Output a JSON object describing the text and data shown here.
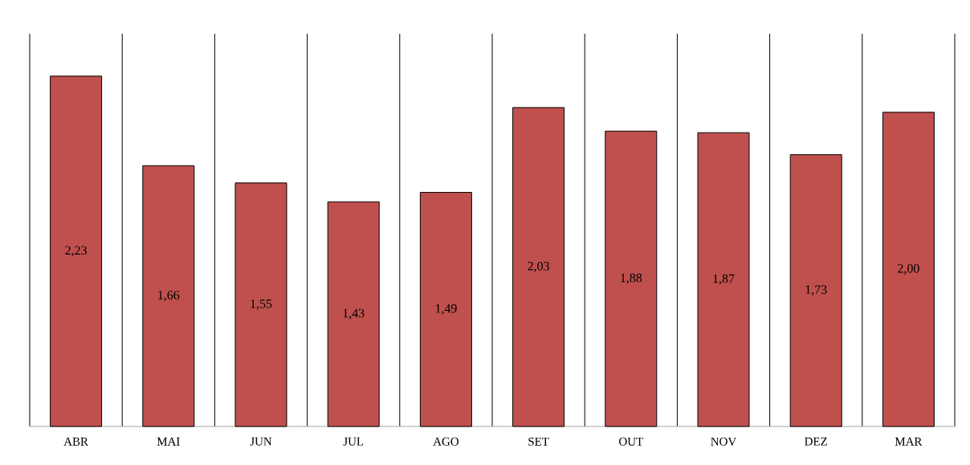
{
  "chart_data": {
    "type": "bar",
    "categories": [
      "ABR",
      "MAI",
      "JUN",
      "JUL",
      "AGO",
      "SET",
      "OUT",
      "NOV",
      "DEZ",
      "MAR"
    ],
    "values": [
      2.23,
      1.66,
      1.55,
      1.43,
      1.49,
      2.03,
      1.88,
      1.87,
      1.73,
      2.0
    ],
    "value_labels": [
      "2,23",
      "1,66",
      "1,55",
      "1,43",
      "1,49",
      "2,03",
      "1,88",
      "1,87",
      "1,73",
      "2,00"
    ],
    "color": "#c0504d",
    "ylim": [
      0,
      2.5
    ],
    "grid": "x",
    "tick_labels": "x"
  }
}
